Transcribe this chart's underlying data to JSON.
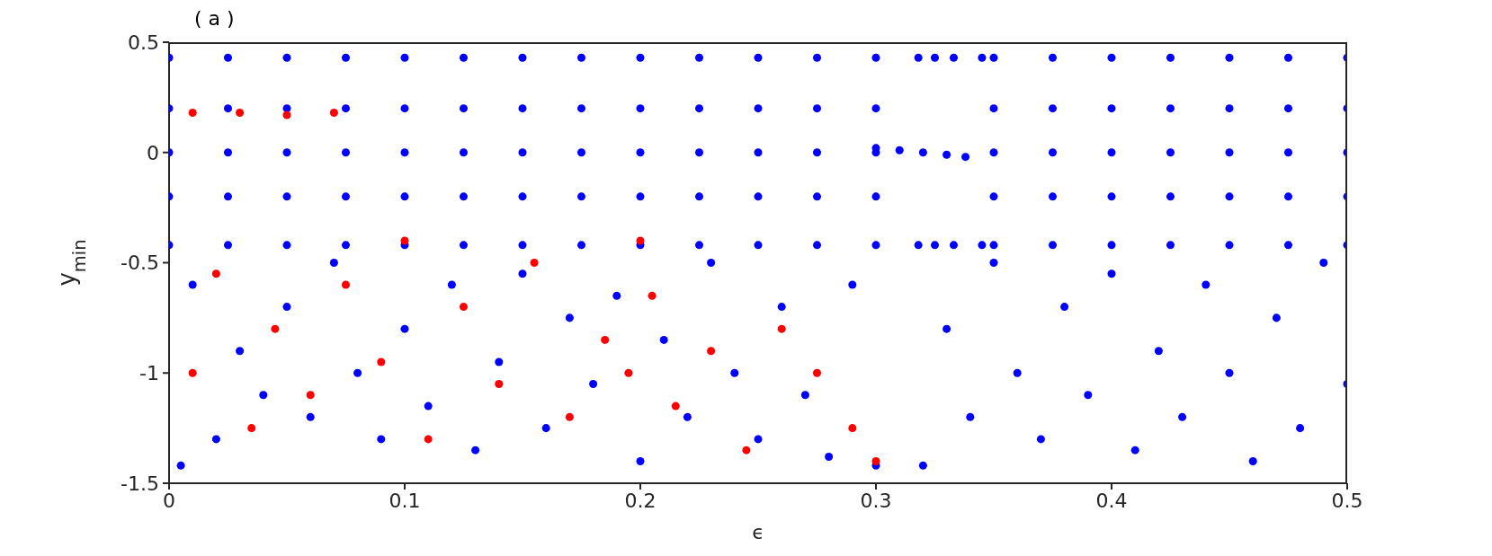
{
  "chart_data": {
    "type": "scatter",
    "title": "( a )",
    "xlabel": "ϵ",
    "ylabel": "y$_{min}$",
    "xlim": [
      0,
      0.5
    ],
    "xticks": [
      0,
      0.1,
      0.2,
      0.3,
      0.4,
      0.5
    ],
    "ylim": [
      -1.5,
      0.5
    ],
    "yticks": [
      -1.5,
      -1,
      -0.5,
      0,
      0.5
    ],
    "grid": false,
    "legend": false,
    "marker": "circle",
    "series": [
      {
        "color": "#0000ff",
        "x": [
          0,
          0,
          0,
          0,
          0,
          0.025,
          0.025,
          0.025,
          0.025,
          0.025,
          0.05,
          0.05,
          0.05,
          0.05,
          0.05,
          0.075,
          0.075,
          0.075,
          0.075,
          0.075,
          0.1,
          0.1,
          0.1,
          0.1,
          0.1,
          0.125,
          0.125,
          0.125,
          0.125,
          0.125,
          0.15,
          0.15,
          0.15,
          0.15,
          0.15,
          0.175,
          0.175,
          0.175,
          0.175,
          0.175,
          0.2,
          0.2,
          0.2,
          0.2,
          0.2,
          0.225,
          0.225,
          0.225,
          0.225,
          0.225,
          0.25,
          0.25,
          0.25,
          0.25,
          0.25,
          0.275,
          0.275,
          0.275,
          0.275,
          0.275,
          0.3,
          0.3,
          0.3,
          0.3,
          0.3,
          0.35,
          0.35,
          0.35,
          0.35,
          0.35,
          0.375,
          0.375,
          0.375,
          0.375,
          0.375,
          0.4,
          0.4,
          0.4,
          0.4,
          0.4,
          0.425,
          0.425,
          0.425,
          0.425,
          0.425,
          0.45,
          0.45,
          0.45,
          0.45,
          0.45,
          0.475,
          0.475,
          0.475,
          0.475,
          0.475,
          0.5,
          0.5,
          0.5,
          0.5,
          0.5,
          0.005,
          0.01,
          0.02,
          0.03,
          0.04,
          0.05,
          0.06,
          0.07,
          0.08,
          0.09,
          0.1,
          0.11,
          0.12,
          0.13,
          0.14,
          0.15,
          0.16,
          0.17,
          0.18,
          0.19,
          0.2,
          0.21,
          0.22,
          0.23,
          0.24,
          0.25,
          0.26,
          0.27,
          0.28,
          0.29,
          0.3,
          0.32,
          0.33,
          0.34,
          0.35,
          0.36,
          0.37,
          0.38,
          0.39,
          0.4,
          0.41,
          0.42,
          0.43,
          0.44,
          0.45,
          0.46,
          0.47,
          0.48,
          0.49,
          0.5,
          0.3,
          0.31,
          0.32,
          0.33,
          0.338,
          0.318,
          0.318,
          0.325,
          0.325,
          0.333,
          0.333,
          0.345,
          0.345
        ],
        "values": [
          0.43,
          0.2,
          0,
          -0.2,
          -0.42,
          0.43,
          0.2,
          0,
          -0.2,
          -0.42,
          0.43,
          0.2,
          0,
          -0.2,
          -0.42,
          0.43,
          0.2,
          0,
          -0.2,
          -0.42,
          0.43,
          0.2,
          0,
          -0.2,
          -0.42,
          0.43,
          0.2,
          0,
          -0.2,
          -0.42,
          0.43,
          0.2,
          0,
          -0.2,
          -0.42,
          0.43,
          0.2,
          0,
          -0.2,
          -0.42,
          0.43,
          0.2,
          0,
          -0.2,
          -0.42,
          0.43,
          0.2,
          0,
          -0.2,
          -0.42,
          0.43,
          0.2,
          0,
          -0.2,
          -0.42,
          0.43,
          0.2,
          0,
          -0.2,
          -0.42,
          0.43,
          0.2,
          0,
          -0.2,
          -0.42,
          0.43,
          0.2,
          0,
          -0.2,
          -0.42,
          0.43,
          0.2,
          0,
          -0.2,
          -0.42,
          0.43,
          0.2,
          0,
          -0.2,
          -0.42,
          0.43,
          0.2,
          0,
          -0.2,
          -0.42,
          0.43,
          0.2,
          0,
          -0.2,
          -0.42,
          0.43,
          0.2,
          0,
          -0.2,
          -0.42,
          0.43,
          0.2,
          0,
          -0.2,
          -0.42,
          -1.42,
          -0.6,
          -1.3,
          -0.9,
          -1.1,
          -0.7,
          -1.2,
          -0.5,
          -1.0,
          -1.3,
          -0.8,
          -1.15,
          -0.6,
          -1.35,
          -0.95,
          -0.55,
          -1.25,
          -0.75,
          -1.05,
          -0.65,
          -1.4,
          -0.85,
          -1.2,
          -0.5,
          -1.0,
          -1.3,
          -0.7,
          -1.1,
          -1.38,
          -0.6,
          -1.42,
          -1.42,
          -0.8,
          -1.2,
          -0.5,
          -1.0,
          -1.3,
          -0.7,
          -1.1,
          -0.55,
          -1.35,
          -0.9,
          -1.2,
          -0.6,
          -1.0,
          -1.4,
          -0.75,
          -1.25,
          -0.5,
          -1.05,
          0.02,
          0.01,
          0,
          -0.01,
          -0.02,
          0.43,
          -0.42,
          0.43,
          -0.42,
          0.43,
          -0.42,
          0.43,
          -0.42
        ]
      },
      {
        "color": "#ff0000",
        "x": [
          0.01,
          0.03,
          0.05,
          0.07,
          0.1,
          0.2,
          0.01,
          0.02,
          0.035,
          0.045,
          0.06,
          0.075,
          0.09,
          0.11,
          0.125,
          0.14,
          0.155,
          0.17,
          0.185,
          0.195,
          0.205,
          0.215,
          0.23,
          0.245,
          0.26,
          0.275,
          0.29,
          0.3
        ],
        "values": [
          0.18,
          0.18,
          0.17,
          0.18,
          -0.4,
          -0.4,
          -1.0,
          -0.55,
          -1.25,
          -0.8,
          -1.1,
          -0.6,
          -0.95,
          -1.3,
          -0.7,
          -1.05,
          -0.5,
          -1.2,
          -0.85,
          -1.0,
          -0.65,
          -1.15,
          -0.9,
          -1.35,
          -0.8,
          -1.0,
          -1.25,
          -1.4
        ]
      }
    ]
  }
}
